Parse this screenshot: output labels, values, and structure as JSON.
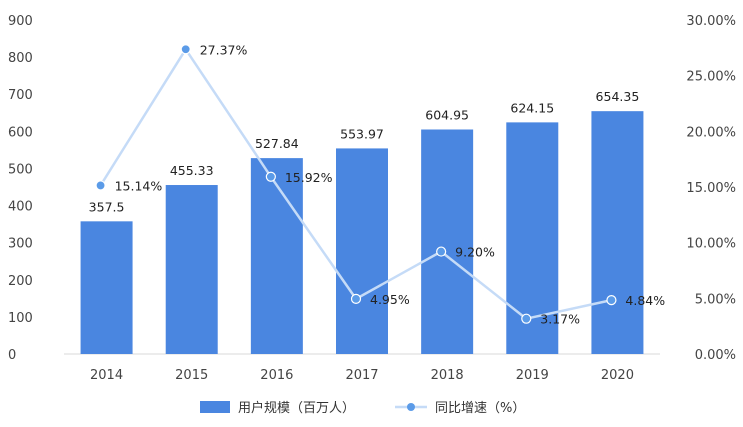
{
  "chart_data": {
    "type": "bar",
    "categories": [
      "2014",
      "2015",
      "2016",
      "2017",
      "2018",
      "2019",
      "2020"
    ],
    "series": [
      {
        "name": "用户规模（百万人）",
        "type": "bar",
        "axis": "left",
        "values": [
          357.5,
          455.33,
          527.84,
          553.97,
          604.95,
          624.15,
          654.35
        ],
        "labels": [
          "357.5",
          "455.33",
          "527.84",
          "553.97",
          "604.95",
          "624.15",
          "654.35"
        ]
      },
      {
        "name": "同比增速（%）",
        "type": "line",
        "axis": "right",
        "values": [
          15.14,
          27.37,
          15.92,
          4.95,
          9.2,
          3.17,
          4.84
        ],
        "labels": [
          "15.14%",
          "27.37%",
          "15.92%",
          "4.95%",
          "9.20%",
          "3.17%",
          "4.84%"
        ]
      }
    ],
    "y_left": {
      "min": 0,
      "max": 900,
      "ticks": [
        "0",
        "100",
        "200",
        "300",
        "400",
        "500",
        "600",
        "700",
        "800",
        "900"
      ]
    },
    "y_right": {
      "min": 0,
      "max": 30,
      "ticks": [
        "0.00%",
        "5.00%",
        "10.00%",
        "15.00%",
        "20.00%",
        "25.00%",
        "30.00%"
      ]
    },
    "grid": false,
    "legend_position": "bottom",
    "colors": {
      "bar": "#4a86e0",
      "line": "#c5dbf7",
      "marker": "#5b9be8"
    }
  }
}
